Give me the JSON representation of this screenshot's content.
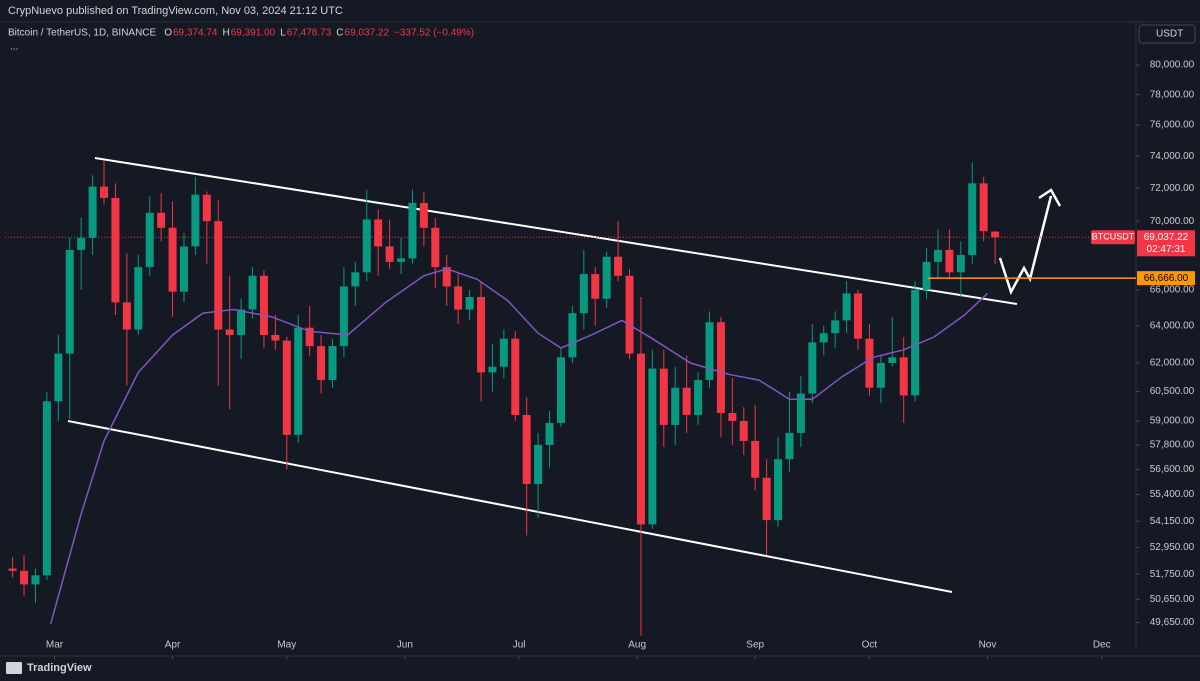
{
  "header": {
    "publisher": "CrypNuevo published on TradingView.com, Nov 03, 2024 21:12 UTC",
    "symbol": "Bitcoin / TetherUS, 1D, BINANCE",
    "ohlc": [
      {
        "key": "O",
        "value": "69,374.74"
      },
      {
        "key": "H",
        "value": "69,391.00"
      },
      {
        "key": "L",
        "value": "67,478.73"
      },
      {
        "key": "C",
        "value": "69,037.22"
      }
    ],
    "change": "−337.52 (−0.49%)",
    "more": "...",
    "currency": "USDT"
  },
  "chart_data": {
    "type": "candlestick",
    "log_scale": true,
    "up_color": "#089981",
    "down_color": "#f23645",
    "x": [
      2,
      5,
      8,
      11,
      14,
      17,
      20,
      23,
      26,
      29,
      32,
      35,
      38,
      41,
      44,
      47,
      50,
      53,
      56,
      59,
      62,
      65,
      68,
      71,
      74,
      77,
      80,
      83,
      86,
      89,
      92,
      95,
      98,
      101,
      104,
      107,
      110,
      113,
      116,
      119,
      122,
      125,
      128,
      131,
      134,
      137,
      140,
      143,
      146,
      149,
      152,
      155,
      158,
      161,
      164,
      167,
      170,
      173,
      176,
      179,
      182,
      185,
      188,
      191,
      194,
      197,
      200,
      203,
      206,
      209,
      212,
      215,
      218,
      221,
      224,
      227,
      230,
      233,
      236,
      239,
      242,
      245,
      248,
      251,
      254,
      257,
      260
    ],
    "open": [
      52000,
      51900,
      51300,
      51700,
      60000,
      62500,
      68300,
      69000,
      72100,
      71400,
      65300,
      63800,
      67300,
      70500,
      69600,
      65900,
      68500,
      71600,
      70000,
      63800,
      63500,
      64900,
      66800,
      63500,
      63200,
      58300,
      63900,
      62900,
      61100,
      62900,
      66200,
      67000,
      70100,
      68500,
      67600,
      67800,
      71100,
      69600,
      67300,
      66200,
      64900,
      65600,
      61500,
      61800,
      63300,
      59300,
      55900,
      57800,
      58900,
      62300,
      64700,
      66900,
      65500,
      67900,
      66800,
      62500,
      54000,
      61700,
      58800,
      60700,
      59300,
      61100,
      64200,
      59400,
      59000,
      58000,
      56200,
      54200,
      57100,
      58400,
      60400,
      63100,
      63600,
      64300,
      65800,
      63300,
      60700,
      62000,
      62300,
      60300,
      66000,
      67600,
      68300,
      67000,
      68000,
      72300,
      69374.74
    ],
    "high": [
      52500,
      52600,
      52000,
      60500,
      63500,
      69000,
      70200,
      72800,
      73700,
      72300,
      68100,
      68000,
      71500,
      71700,
      71200,
      69300,
      72700,
      71800,
      71300,
      66800,
      65500,
      67300,
      67100,
      64600,
      63400,
      64600,
      65100,
      63500,
      63300,
      67300,
      67600,
      71900,
      70700,
      70100,
      69000,
      71900,
      71800,
      70200,
      68000,
      67000,
      66000,
      66500,
      63000,
      63800,
      63700,
      60200,
      58400,
      59500,
      62800,
      65100,
      68300,
      67300,
      68200,
      70000,
      67200,
      65600,
      62700,
      62700,
      61800,
      62400,
      61500,
      64800,
      64500,
      61200,
      59700,
      59800,
      57100,
      58200,
      60500,
      61300,
      64100,
      64000,
      64800,
      66500,
      66000,
      64100,
      62400,
      64500,
      63400,
      66500,
      68400,
      69500,
      69500,
      68800,
      73600,
      72700,
      69391
    ],
    "low": [
      51600,
      50800,
      50500,
      51500,
      59000,
      59100,
      66000,
      68000,
      71000,
      64600,
      60800,
      63500,
      66800,
      68800,
      64500,
      65300,
      68000,
      67500,
      60800,
      59600,
      62200,
      64400,
      62800,
      62700,
      56600,
      57900,
      62400,
      60400,
      60700,
      62300,
      65100,
      66500,
      66800,
      67200,
      66900,
      67500,
      68500,
      66100,
      65100,
      64100,
      64300,
      60000,
      60500,
      61200,
      59000,
      53500,
      54300,
      56700,
      58700,
      62000,
      63800,
      64000,
      65000,
      66500,
      62200,
      49100,
      53800,
      57700,
      57800,
      58400,
      58800,
      60700,
      58200,
      57800,
      57300,
      55600,
      52600,
      53900,
      56500,
      57700,
      59900,
      62400,
      62800,
      63600,
      62700,
      60300,
      59900,
      61800,
      58900,
      60000,
      65500,
      66700,
      66700,
      65600,
      67500,
      68800,
      67478.73
    ],
    "close": [
      51900,
      51300,
      51700,
      60000,
      62500,
      68300,
      69000,
      72100,
      71400,
      65300,
      63800,
      67300,
      70500,
      69600,
      65900,
      68500,
      71600,
      70000,
      63800,
      63500,
      64900,
      66800,
      63500,
      63200,
      58300,
      63900,
      62900,
      61100,
      62900,
      66200,
      67000,
      70100,
      68500,
      67600,
      67800,
      71100,
      69600,
      67300,
      66200,
      64900,
      65600,
      61500,
      61800,
      63300,
      59300,
      55900,
      57800,
      58900,
      62300,
      64700,
      66900,
      65500,
      67900,
      66800,
      62500,
      54000,
      61700,
      58800,
      60700,
      59300,
      61100,
      64200,
      59400,
      59000,
      58000,
      56200,
      54200,
      57100,
      58400,
      60400,
      63100,
      63600,
      64300,
      65800,
      63300,
      60700,
      62000,
      62300,
      60300,
      66000,
      67600,
      68300,
      67000,
      68000,
      72300,
      69400,
      69037.22
    ],
    "ma": {
      "color": "#7e57c2",
      "x": [
        12,
        20,
        26,
        35,
        44,
        52,
        60,
        70,
        80,
        90,
        100,
        110,
        116,
        124,
        132,
        140,
        146,
        154,
        162,
        170,
        180,
        190,
        198,
        206,
        212,
        220,
        228,
        236,
        244,
        252,
        258
      ],
      "values": [
        49600,
        54500,
        58000,
        61500,
        63500,
        64700,
        64900,
        64500,
        63700,
        63500,
        65300,
        66800,
        67200,
        66600,
        65400,
        63600,
        62800,
        63500,
        64300,
        63300,
        62000,
        61400,
        61100,
        60100,
        60100,
        61300,
        62300,
        62700,
        63400,
        64600,
        65800
      ]
    },
    "xlim": [
      0,
      297
    ],
    "xticks": [
      {
        "value": 13,
        "label": "Mar"
      },
      {
        "value": 44,
        "label": "Apr"
      },
      {
        "value": 74,
        "label": "May"
      },
      {
        "value": 105,
        "label": "Jun"
      },
      {
        "value": 135,
        "label": "Jul"
      },
      {
        "value": 166,
        "label": "Aug"
      },
      {
        "value": 197,
        "label": "Sep"
      },
      {
        "value": 227,
        "label": "Oct"
      },
      {
        "value": 258,
        "label": "Nov"
      },
      {
        "value": 288,
        "label": "Dec"
      }
    ],
    "ylim": [
      48500,
      83000
    ],
    "yticks": [
      {
        "value": 80000,
        "label": "80,000.00"
      },
      {
        "value": 78000,
        "label": "78,000.00"
      },
      {
        "value": 76000,
        "label": "76,000.00"
      },
      {
        "value": 74000,
        "label": "74,000.00"
      },
      {
        "value": 72000,
        "label": "72,000.00"
      },
      {
        "value": 70000,
        "label": "70,000.00"
      },
      {
        "value": 66000,
        "label": "66,000.00"
      },
      {
        "value": 64000,
        "label": "64,000.00"
      },
      {
        "value": 62000,
        "label": "62,000.00"
      },
      {
        "value": 60500,
        "label": "60,500.00"
      },
      {
        "value": 59000,
        "label": "59,000.00"
      },
      {
        "value": 57800,
        "label": "57,800.00"
      },
      {
        "value": 56600,
        "label": "56,600.00"
      },
      {
        "value": 55400,
        "label": "55,400.00"
      },
      {
        "value": 54150,
        "label": "54,150.00"
      },
      {
        "value": 52950,
        "label": "52,950.00"
      },
      {
        "value": 51750,
        "label": "51,750.00"
      },
      {
        "value": 50650,
        "label": "50,650.00"
      },
      {
        "value": 49650,
        "label": "49,650.00"
      }
    ],
    "last_price": {
      "value": 69037.22,
      "label": "69,037.22"
    },
    "symbol_badge": "BTCUSDT",
    "countdown": "02:47:31",
    "level": {
      "value": 66666,
      "label": "66,666.00",
      "color": "#ff9800"
    }
  },
  "footer": {
    "brand": "TradingView"
  }
}
